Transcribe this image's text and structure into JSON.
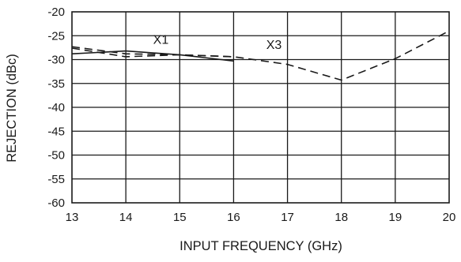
{
  "chart_data": {
    "type": "line",
    "title": "",
    "xlabel": "INPUT FREQUENCY (GHz)",
    "ylabel": "REJECTION (dBc)",
    "xlim": [
      13,
      20
    ],
    "ylim": [
      -60,
      -20
    ],
    "x_ticks": [
      "13",
      "14",
      "15",
      "16",
      "17",
      "18",
      "19",
      "20"
    ],
    "y_ticks": [
      "-20",
      "-25",
      "-30",
      "-35",
      "-40",
      "-45",
      "-50",
      "-55",
      "-60"
    ],
    "grid": true,
    "annotations": [
      {
        "text": "X1",
        "x": 14.65,
        "y": -26.7
      },
      {
        "text": "X3",
        "x": 16.75,
        "y": -27.8
      }
    ],
    "series": [
      {
        "key": "x1_solid",
        "line_style": "solid",
        "x": [
          13,
          14,
          15,
          16
        ],
        "y": [
          -28.8,
          -28.2,
          -29.0,
          -30.3
        ]
      },
      {
        "key": "x1_dashed",
        "line_style": "dashed",
        "x": [
          13,
          14,
          15,
          16
        ],
        "y": [
          -27.6,
          -29.4,
          -29.0,
          -29.4
        ]
      },
      {
        "key": "x3_dashed",
        "line_style": "dashed",
        "x": [
          13,
          14,
          15,
          16,
          17,
          18,
          19,
          20
        ],
        "y": [
          -27.3,
          -28.8,
          -29.0,
          -29.4,
          -31.0,
          -34.3,
          -29.8,
          -24.0
        ]
      }
    ],
    "colors": {
      "line": "#1a1a1a",
      "grid": "#1a1a1a",
      "text": "#1a1a1a"
    }
  }
}
